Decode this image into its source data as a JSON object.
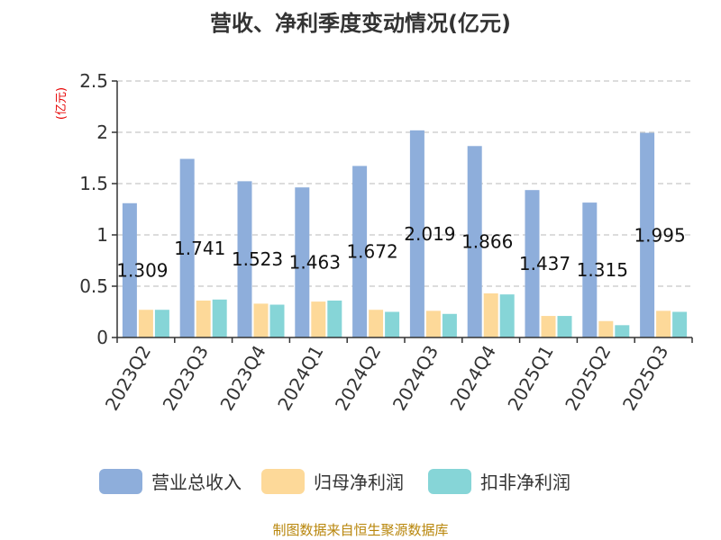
{
  "chart_data": {
    "type": "bar",
    "title": "营收、净利季度变动情况(亿元)",
    "ylabel": "(亿元)",
    "xlabel": "",
    "ylim": [
      0,
      2.5
    ],
    "yticks": [
      "0",
      "0.5",
      "1",
      "1.5",
      "2",
      "2.5"
    ],
    "grid": true,
    "legend_position": "bottom",
    "categories": [
      "2023Q2",
      "2023Q3",
      "2023Q4",
      "2024Q1",
      "2024Q2",
      "2024Q3",
      "2024Q4",
      "2025Q1",
      "2025Q2",
      "2025Q3"
    ],
    "series": [
      {
        "name": "营业总收入",
        "color": "#8eaedb",
        "values": [
          1.309,
          1.741,
          1.523,
          1.463,
          1.672,
          2.019,
          1.866,
          1.437,
          1.315,
          1.995
        ]
      },
      {
        "name": "归母净利润",
        "color": "#fdd999",
        "values": [
          0.27,
          0.36,
          0.33,
          0.35,
          0.27,
          0.26,
          0.43,
          0.21,
          0.16,
          0.26
        ]
      },
      {
        "name": "扣非净利润",
        "color": "#86d5d7",
        "values": [
          0.27,
          0.37,
          0.32,
          0.36,
          0.25,
          0.23,
          0.42,
          0.21,
          0.12,
          0.25
        ]
      }
    ],
    "data_labels": [
      "1.309",
      "1.741",
      "1.523",
      "1.463",
      "1.672",
      "2.019",
      "1.866",
      "1.437",
      "1.315",
      "1.995"
    ]
  },
  "footer": {
    "source": "制图数据来自恒生聚源数据库"
  }
}
